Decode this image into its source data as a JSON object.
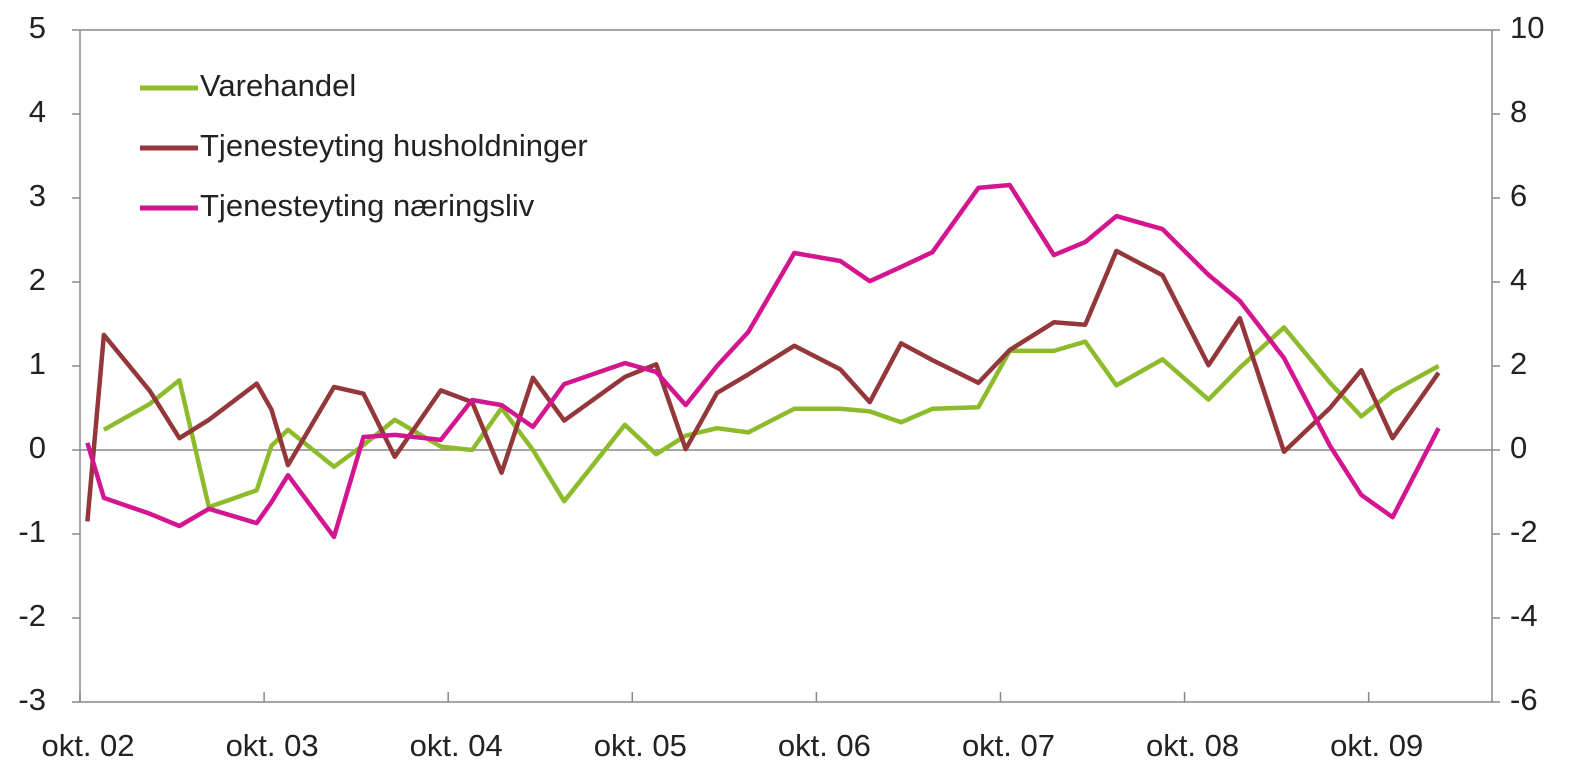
{
  "chart_data": {
    "type": "line",
    "x": [
      2002.79,
      2002.88,
      2003.13,
      2003.29,
      2003.45,
      2003.71,
      2003.79,
      2003.88,
      2004.13,
      2004.29,
      2004.46,
      2004.71,
      2004.88,
      2005.04,
      2005.21,
      2005.38,
      2005.71,
      2005.88,
      2006.04,
      2006.21,
      2006.38,
      2006.63,
      2006.88,
      2007.04,
      2007.21,
      2007.38,
      2007.63,
      2007.8,
      2008.04,
      2008.21,
      2008.38,
      2008.63,
      2008.88,
      2009.05,
      2009.29,
      2009.54,
      2009.71,
      2009.88,
      2010.13
    ],
    "xlim": [
      2002.75,
      2010.42
    ],
    "xticks": [
      {
        "value": 2002.75,
        "label": "okt. 02"
      },
      {
        "value": 2003.75,
        "label": "okt. 03"
      },
      {
        "value": 2004.75,
        "label": "okt. 04"
      },
      {
        "value": 2005.75,
        "label": "okt. 05"
      },
      {
        "value": 2006.75,
        "label": "okt. 06"
      },
      {
        "value": 2007.75,
        "label": "okt. 07"
      },
      {
        "value": 2008.75,
        "label": "okt. 08"
      },
      {
        "value": 2009.75,
        "label": "okt. 09"
      }
    ],
    "ylim": [
      -3,
      5
    ],
    "yticks": [
      -3,
      -2,
      -1,
      0,
      1,
      2,
      3,
      4,
      5
    ],
    "y2lim": [
      -6,
      10
    ],
    "y2ticks": [
      -6,
      -4,
      -2,
      0,
      2,
      4,
      6,
      8,
      10
    ],
    "legend": "upper left",
    "series": [
      {
        "name": "Varehandel",
        "color": "#8dbb2b",
        "values": [
          null,
          0.24,
          0.55,
          0.83,
          -0.68,
          -0.48,
          0.05,
          0.24,
          -0.2,
          0.06,
          0.36,
          0.04,
          0.0,
          0.5,
          0.0,
          -0.61,
          0.3,
          -0.05,
          0.17,
          0.26,
          0.21,
          0.49,
          0.49,
          0.46,
          0.33,
          0.49,
          0.51,
          1.18,
          1.18,
          1.29,
          0.77,
          1.08,
          0.6,
          0.98,
          1.46,
          0.8,
          0.4,
          0.7,
          1.0
        ]
      },
      {
        "name": "Tjenesteyting husholdninger",
        "color": "#93373a",
        "values": [
          -0.85,
          1.37,
          0.7,
          0.14,
          0.36,
          0.79,
          0.48,
          -0.18,
          0.75,
          0.67,
          -0.08,
          0.71,
          0.57,
          -0.27,
          0.86,
          0.35,
          0.87,
          1.02,
          0.01,
          0.68,
          0.9,
          1.24,
          0.96,
          0.57,
          1.27,
          1.07,
          0.8,
          1.19,
          1.52,
          1.49,
          2.37,
          2.08,
          1.01,
          1.57,
          -0.02,
          0.5,
          0.95,
          0.14,
          0.92
        ]
      },
      {
        "name": "Tjenesteyting næringsliv",
        "color": "#d3158f",
        "axis": "y2",
        "values": [
          0.17,
          -1.14,
          -1.52,
          -1.81,
          -1.4,
          -1.74,
          -1.24,
          -0.6,
          -2.07,
          0.31,
          0.36,
          0.24,
          1.19,
          1.07,
          0.55,
          1.57,
          2.07,
          1.86,
          1.07,
          2.0,
          2.81,
          4.69,
          4.5,
          4.02,
          4.36,
          4.71,
          6.24,
          6.31,
          4.64,
          4.95,
          5.57,
          5.26,
          4.17,
          3.55,
          2.19,
          0.1,
          -1.07,
          -1.6,
          0.52
        ]
      }
    ]
  }
}
